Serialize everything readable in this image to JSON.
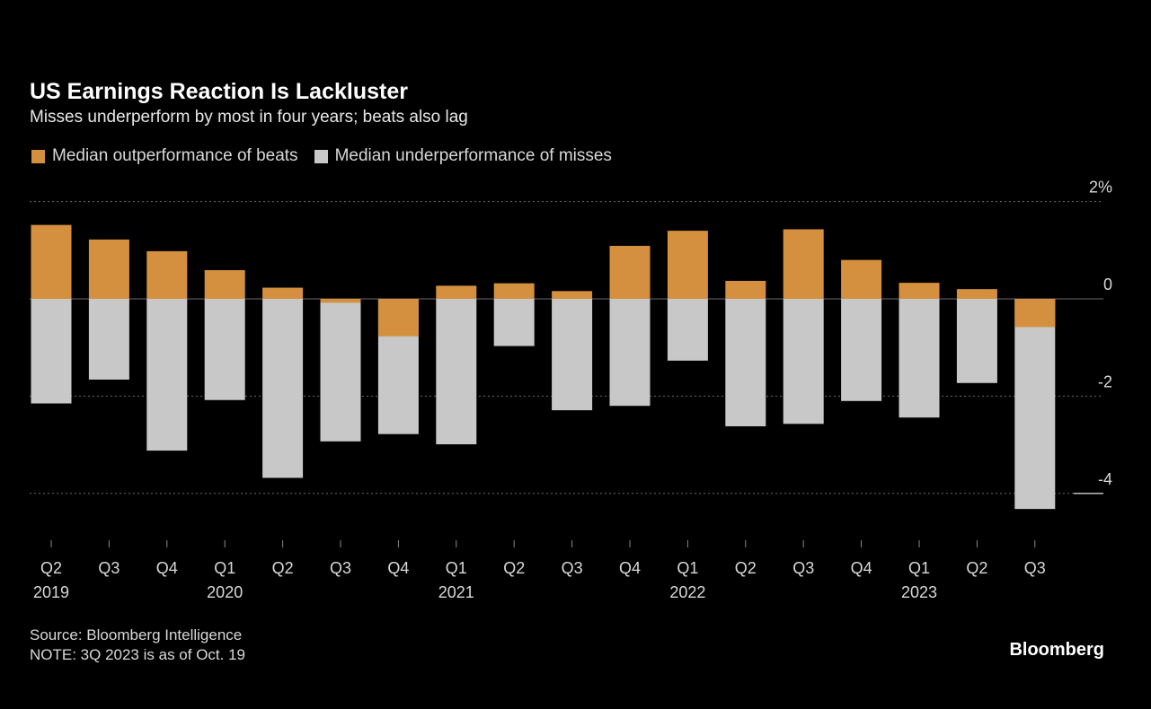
{
  "chart_data": {
    "type": "bar",
    "title": "US Earnings Reaction Is Lackluster",
    "subtitle": "Misses underperform by most in four years; beats also lag",
    "categories": [
      "Q2 2019",
      "Q3 2019",
      "Q4 2019",
      "Q1 2020",
      "Q2 2020",
      "Q3 2020",
      "Q4 2020",
      "Q1 2021",
      "Q2 2021",
      "Q3 2021",
      "Q4 2021",
      "Q1 2022",
      "Q2 2022",
      "Q3 2022",
      "Q4 2022",
      "Q1 2023",
      "Q2 2023",
      "Q3 2023"
    ],
    "x_tick_labels": [
      "Q2",
      "Q3",
      "Q4",
      "Q1",
      "Q2",
      "Q3",
      "Q4",
      "Q1",
      "Q2",
      "Q3",
      "Q4",
      "Q1",
      "Q2",
      "Q3",
      "Q4",
      "Q1",
      "Q2",
      "Q3"
    ],
    "year_labels": [
      {
        "label": "2019",
        "index": 0
      },
      {
        "label": "2020",
        "index": 3
      },
      {
        "label": "2021",
        "index": 7
      },
      {
        "label": "2022",
        "index": 11
      },
      {
        "label": "2023",
        "index": 15
      }
    ],
    "series": [
      {
        "name": "Median outperformance of beats",
        "color": "#D4903E",
        "values": [
          1.52,
          1.22,
          0.98,
          0.59,
          0.23,
          -0.08,
          -0.77,
          0.27,
          0.32,
          0.16,
          1.09,
          1.4,
          0.37,
          1.43,
          0.8,
          0.33,
          0.2,
          -0.58
        ]
      },
      {
        "name": "Median underperformance of misses",
        "color": "#C8C8C8",
        "values": [
          -2.15,
          -1.66,
          -3.12,
          -2.08,
          -3.68,
          -2.93,
          -2.78,
          -2.99,
          -0.97,
          -2.29,
          -2.2,
          -1.27,
          -2.62,
          -2.57,
          -2.1,
          -2.44,
          -1.73,
          -4.32
        ]
      }
    ],
    "y_ticks": [
      2,
      0,
      -2,
      -4
    ],
    "y_tick_labels": [
      "2%",
      "0",
      "-2",
      "-4"
    ],
    "ylim": [
      -4.9,
      2.3
    ],
    "grid": true,
    "legend_position": "top-left"
  },
  "footer": {
    "source": "Source: Bloomberg Intelligence",
    "note": "NOTE: 3Q 2023 is as of Oct. 19",
    "brand": "Bloomberg"
  }
}
